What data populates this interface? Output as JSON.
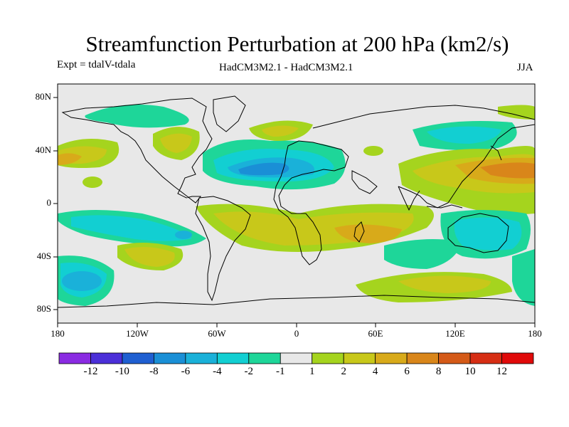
{
  "title": "Streamfunction Perturbation at 200 hPa (km2/s)",
  "expt_label": "Expt = tdalV-tdala",
  "model_label": "HadCM3M2.1 - HadCM3M2.1",
  "season": "JJA",
  "y_axis_labels": [
    "80N",
    "40N",
    "0",
    "40S",
    "80S"
  ],
  "x_axis_labels": [
    "180",
    "120W",
    "60W",
    "0",
    "60E",
    "120E",
    "180"
  ],
  "colorbar": {
    "labels": [
      "-12",
      "-10",
      "-8",
      "-6",
      "-4",
      "-2",
      "-1",
      "1",
      "2",
      "4",
      "6",
      "8",
      "10",
      "12"
    ],
    "colors": [
      "#8a2be2",
      "#4b2fd8",
      "#1f5fd1",
      "#1a8fd6",
      "#1ab1d9",
      "#12cfd2",
      "#1ed699",
      "#e8e8e8",
      "#a5d41e",
      "#c8c81a",
      "#d8aa1a",
      "#d9861a",
      "#d45a18",
      "#d62e14",
      "#e00a0a"
    ]
  },
  "land_color": "#e8e8e8"
}
